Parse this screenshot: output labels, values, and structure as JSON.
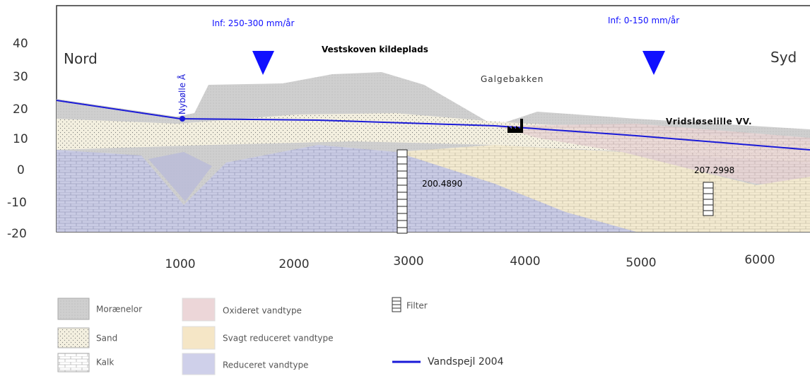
{
  "y_axis": {
    "labels": [
      "40",
      "30",
      "20",
      "10",
      "0",
      "-10",
      "-20"
    ]
  },
  "x_axis": {
    "labels": [
      "1000",
      "2000",
      "3000",
      "4000",
      "5000",
      "6000"
    ]
  },
  "annotations": {
    "nord": "Nord",
    "syd": "Syd",
    "infiltration_1": "Inf: 250-300 mm/år",
    "infiltration_2": "Inf: 0-150 mm/år",
    "site": "Vestskoven kildeplads",
    "river": "Nybølle Å",
    "hill": "Galgebakken",
    "waterworks": "Vridsløselille VV.",
    "well_1": "200.4890",
    "well_2": "207.2998"
  },
  "legend": [
    "Morænelor",
    "Sand",
    "Kalk",
    "Oxideret vandtype",
    "Svagt reduceret vandtype",
    "Reduceret vandtype",
    "Filter",
    "Vandspejl 2004"
  ]
}
